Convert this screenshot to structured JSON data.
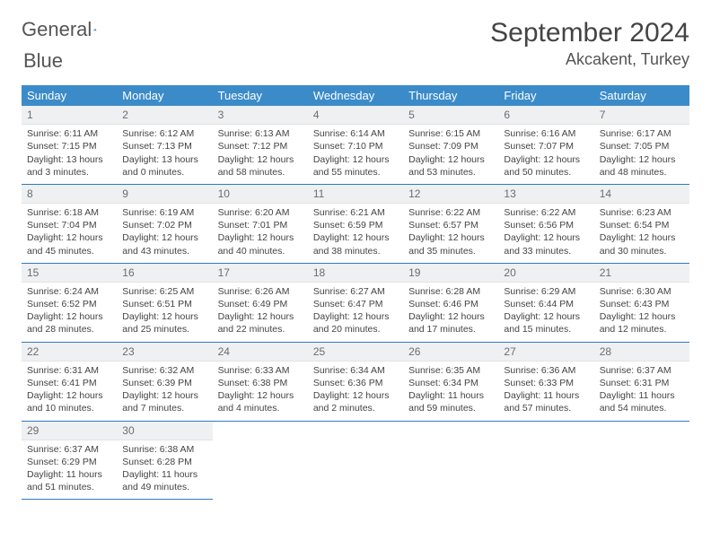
{
  "brand": {
    "word1": "General",
    "word2": "Blue",
    "logo_fill": "#2f7bbf"
  },
  "header": {
    "month_title": "September 2024",
    "location": "Akcakent, Turkey"
  },
  "theme": {
    "header_bg": "#3b8bc9",
    "header_text": "#ffffff",
    "rule_color": "#2f7bbf",
    "daynum_bg": "#eef0f2",
    "daynum_text": "#6a6e72",
    "body_text": "#444444"
  },
  "weekdays": [
    "Sunday",
    "Monday",
    "Tuesday",
    "Wednesday",
    "Thursday",
    "Friday",
    "Saturday"
  ],
  "weeks": [
    [
      {
        "n": "1",
        "sunrise": "6:11 AM",
        "sunset": "7:15 PM",
        "daylight": "13 hours and 3 minutes."
      },
      {
        "n": "2",
        "sunrise": "6:12 AM",
        "sunset": "7:13 PM",
        "daylight": "13 hours and 0 minutes."
      },
      {
        "n": "3",
        "sunrise": "6:13 AM",
        "sunset": "7:12 PM",
        "daylight": "12 hours and 58 minutes."
      },
      {
        "n": "4",
        "sunrise": "6:14 AM",
        "sunset": "7:10 PM",
        "daylight": "12 hours and 55 minutes."
      },
      {
        "n": "5",
        "sunrise": "6:15 AM",
        "sunset": "7:09 PM",
        "daylight": "12 hours and 53 minutes."
      },
      {
        "n": "6",
        "sunrise": "6:16 AM",
        "sunset": "7:07 PM",
        "daylight": "12 hours and 50 minutes."
      },
      {
        "n": "7",
        "sunrise": "6:17 AM",
        "sunset": "7:05 PM",
        "daylight": "12 hours and 48 minutes."
      }
    ],
    [
      {
        "n": "8",
        "sunrise": "6:18 AM",
        "sunset": "7:04 PM",
        "daylight": "12 hours and 45 minutes."
      },
      {
        "n": "9",
        "sunrise": "6:19 AM",
        "sunset": "7:02 PM",
        "daylight": "12 hours and 43 minutes."
      },
      {
        "n": "10",
        "sunrise": "6:20 AM",
        "sunset": "7:01 PM",
        "daylight": "12 hours and 40 minutes."
      },
      {
        "n": "11",
        "sunrise": "6:21 AM",
        "sunset": "6:59 PM",
        "daylight": "12 hours and 38 minutes."
      },
      {
        "n": "12",
        "sunrise": "6:22 AM",
        "sunset": "6:57 PM",
        "daylight": "12 hours and 35 minutes."
      },
      {
        "n": "13",
        "sunrise": "6:22 AM",
        "sunset": "6:56 PM",
        "daylight": "12 hours and 33 minutes."
      },
      {
        "n": "14",
        "sunrise": "6:23 AM",
        "sunset": "6:54 PM",
        "daylight": "12 hours and 30 minutes."
      }
    ],
    [
      {
        "n": "15",
        "sunrise": "6:24 AM",
        "sunset": "6:52 PM",
        "daylight": "12 hours and 28 minutes."
      },
      {
        "n": "16",
        "sunrise": "6:25 AM",
        "sunset": "6:51 PM",
        "daylight": "12 hours and 25 minutes."
      },
      {
        "n": "17",
        "sunrise": "6:26 AM",
        "sunset": "6:49 PM",
        "daylight": "12 hours and 22 minutes."
      },
      {
        "n": "18",
        "sunrise": "6:27 AM",
        "sunset": "6:47 PM",
        "daylight": "12 hours and 20 minutes."
      },
      {
        "n": "19",
        "sunrise": "6:28 AM",
        "sunset": "6:46 PM",
        "daylight": "12 hours and 17 minutes."
      },
      {
        "n": "20",
        "sunrise": "6:29 AM",
        "sunset": "6:44 PM",
        "daylight": "12 hours and 15 minutes."
      },
      {
        "n": "21",
        "sunrise": "6:30 AM",
        "sunset": "6:43 PM",
        "daylight": "12 hours and 12 minutes."
      }
    ],
    [
      {
        "n": "22",
        "sunrise": "6:31 AM",
        "sunset": "6:41 PM",
        "daylight": "12 hours and 10 minutes."
      },
      {
        "n": "23",
        "sunrise": "6:32 AM",
        "sunset": "6:39 PM",
        "daylight": "12 hours and 7 minutes."
      },
      {
        "n": "24",
        "sunrise": "6:33 AM",
        "sunset": "6:38 PM",
        "daylight": "12 hours and 4 minutes."
      },
      {
        "n": "25",
        "sunrise": "6:34 AM",
        "sunset": "6:36 PM",
        "daylight": "12 hours and 2 minutes."
      },
      {
        "n": "26",
        "sunrise": "6:35 AM",
        "sunset": "6:34 PM",
        "daylight": "11 hours and 59 minutes."
      },
      {
        "n": "27",
        "sunrise": "6:36 AM",
        "sunset": "6:33 PM",
        "daylight": "11 hours and 57 minutes."
      },
      {
        "n": "28",
        "sunrise": "6:37 AM",
        "sunset": "6:31 PM",
        "daylight": "11 hours and 54 minutes."
      }
    ],
    [
      {
        "n": "29",
        "sunrise": "6:37 AM",
        "sunset": "6:29 PM",
        "daylight": "11 hours and 51 minutes."
      },
      {
        "n": "30",
        "sunrise": "6:38 AM",
        "sunset": "6:28 PM",
        "daylight": "11 hours and 49 minutes."
      },
      null,
      null,
      null,
      null,
      null
    ]
  ],
  "labels": {
    "sunrise": "Sunrise: ",
    "sunset": "Sunset: ",
    "daylight": "Daylight: "
  }
}
